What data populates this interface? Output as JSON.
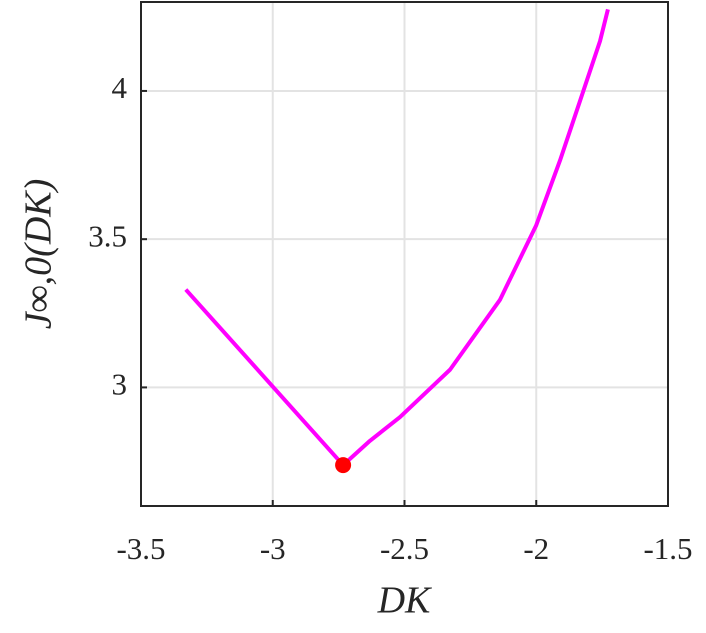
{
  "chart_data": {
    "type": "line",
    "xlabel": "DK",
    "ylabel": "J∞,0(DK)",
    "xlim": [
      -3.5,
      -1.5
    ],
    "xticks": [
      -3.5,
      -3,
      -2.5,
      -2,
      -1.5
    ],
    "ylim": [
      2.6,
      4.3
    ],
    "yticks": [
      3,
      3.5,
      4
    ],
    "grid": true,
    "series": [
      {
        "color": "#ff00ff",
        "x": [
          -3.33,
          -2.733
        ],
        "values": [
          3.33,
          2.738
        ]
      },
      {
        "color": "#ff00ff",
        "x": [
          -2.733,
          -2.631,
          -2.517,
          -2.327,
          -2.138,
          -2.0,
          -1.91,
          -1.834,
          -1.758,
          -1.728
        ],
        "values": [
          2.738,
          2.82,
          2.9,
          3.06,
          3.295,
          3.547,
          3.765,
          3.966,
          4.168,
          4.275
        ]
      },
      {
        "color": "#ff0000",
        "marker": "circle",
        "x": [
          -2.733
        ],
        "values": [
          2.738
        ]
      }
    ]
  }
}
